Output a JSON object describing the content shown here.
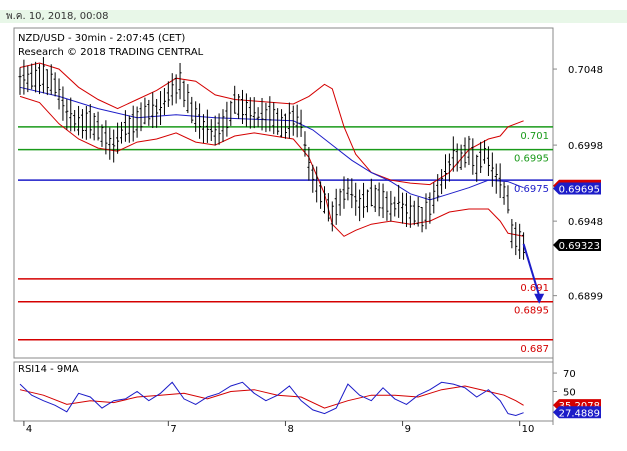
{
  "header": {
    "date_text": "พ.ค. 10, 2018, 00:08"
  },
  "chart_data": {
    "type": "line",
    "title": "NZD/USD - 30min - 2:07:45 (CET)",
    "subtitle": "Research © 2018 TRADING CENTRAL",
    "price_ylim": [
      0.6858,
      0.7075
    ],
    "price_ticks": [
      {
        "label": "0.7048",
        "value": 0.7048
      },
      {
        "label": "0.6998",
        "value": 0.6998
      },
      {
        "label": "0.6948",
        "value": 0.6948
      },
      {
        "label": "0.6899",
        "value": 0.6899
      }
    ],
    "x_ticks": [
      {
        "label": "4",
        "index": 2
      },
      {
        "label": "7",
        "index": 76
      },
      {
        "label": "8",
        "index": 136
      },
      {
        "label": "9",
        "index": 196
      },
      {
        "label": "10",
        "index": 256
      }
    ],
    "n_bars": 270,
    "levels": [
      {
        "label": "0.701",
        "value": 0.701,
        "color": "#1a9a1a",
        "text_color": "#1a9a1a"
      },
      {
        "label": "0.6995",
        "value": 0.6995,
        "color": "#1a9a1a",
        "text_color": "#1a9a1a"
      },
      {
        "label": "0.6975",
        "value": 0.6975,
        "color": "#1c1cc8",
        "text_color": "#1c1cc8"
      },
      {
        "label": "0.691",
        "value": 0.691,
        "color": "#d40000",
        "text_color": "#d40000"
      },
      {
        "label": "0.6895",
        "value": 0.6895,
        "color": "#d40000",
        "text_color": "#d40000"
      },
      {
        "label": "0.687",
        "value": 0.687,
        "color": "#d40000",
        "text_color": "#d40000"
      }
    ],
    "price_series": {
      "name": "NZD/USD",
      "color": "#000000",
      "points": [
        [
          0,
          0.7043
        ],
        [
          6,
          0.7041
        ],
        [
          12,
          0.7044
        ],
        [
          18,
          0.7037
        ],
        [
          24,
          0.702
        ],
        [
          30,
          0.7012
        ],
        [
          36,
          0.7014
        ],
        [
          42,
          0.7005
        ],
        [
          48,
          0.6998
        ],
        [
          54,
          0.7009
        ],
        [
          60,
          0.7014
        ],
        [
          66,
          0.702
        ],
        [
          72,
          0.7022
        ],
        [
          78,
          0.7034
        ],
        [
          82,
          0.704
        ],
        [
          88,
          0.702
        ],
        [
          94,
          0.7011
        ],
        [
          100,
          0.7006
        ],
        [
          106,
          0.7015
        ],
        [
          110,
          0.7025
        ],
        [
          116,
          0.7022
        ],
        [
          122,
          0.7016
        ],
        [
          128,
          0.7019
        ],
        [
          134,
          0.701
        ],
        [
          140,
          0.7016
        ],
        [
          144,
          0.7011
        ],
        [
          148,
          0.6985
        ],
        [
          152,
          0.6972
        ],
        [
          156,
          0.696
        ],
        [
          160,
          0.6952
        ],
        [
          164,
          0.6963
        ],
        [
          168,
          0.6968
        ],
        [
          174,
          0.696
        ],
        [
          180,
          0.6964
        ],
        [
          186,
          0.6962
        ],
        [
          190,
          0.6956
        ],
        [
          194,
          0.696
        ],
        [
          200,
          0.6954
        ],
        [
          206,
          0.6951
        ],
        [
          210,
          0.6958
        ],
        [
          214,
          0.6968
        ],
        [
          218,
          0.698
        ],
        [
          222,
          0.6992
        ],
        [
          226,
          0.6988
        ],
        [
          230,
          0.6996
        ],
        [
          234,
          0.6985
        ],
        [
          238,
          0.6992
        ],
        [
          242,
          0.6982
        ],
        [
          246,
          0.6974
        ],
        [
          250,
          0.696
        ],
        [
          252,
          0.694
        ],
        [
          255,
          0.6936
        ],
        [
          258,
          0.6933
        ]
      ]
    },
    "ma_series": {
      "color": "#1c1cc8",
      "points": [
        [
          0,
          0.7036
        ],
        [
          20,
          0.703
        ],
        [
          40,
          0.7022
        ],
        [
          60,
          0.7016
        ],
        [
          80,
          0.7018
        ],
        [
          100,
          0.7016
        ],
        [
          120,
          0.7015
        ],
        [
          140,
          0.7014
        ],
        [
          150,
          0.7008
        ],
        [
          160,
          0.6998
        ],
        [
          170,
          0.6988
        ],
        [
          180,
          0.698
        ],
        [
          190,
          0.6974
        ],
        [
          200,
          0.6966
        ],
        [
          210,
          0.6962
        ],
        [
          220,
          0.6966
        ],
        [
          230,
          0.697
        ],
        [
          240,
          0.6975
        ],
        [
          250,
          0.6974
        ],
        [
          258,
          0.697
        ]
      ]
    },
    "bollinger_upper": {
      "color": "#d40000",
      "points": [
        [
          0,
          0.7049
        ],
        [
          10,
          0.7052
        ],
        [
          20,
          0.7048
        ],
        [
          30,
          0.7036
        ],
        [
          40,
          0.7028
        ],
        [
          50,
          0.7022
        ],
        [
          60,
          0.7028
        ],
        [
          70,
          0.7034
        ],
        [
          80,
          0.7042
        ],
        [
          90,
          0.704
        ],
        [
          100,
          0.7031
        ],
        [
          110,
          0.7028
        ],
        [
          120,
          0.7027
        ],
        [
          130,
          0.7026
        ],
        [
          140,
          0.7025
        ],
        [
          148,
          0.703
        ],
        [
          156,
          0.7038
        ],
        [
          160,
          0.7035
        ],
        [
          166,
          0.701
        ],
        [
          172,
          0.6992
        ],
        [
          180,
          0.698
        ],
        [
          190,
          0.6975
        ],
        [
          200,
          0.6973
        ],
        [
          210,
          0.6972
        ],
        [
          220,
          0.698
        ],
        [
          230,
          0.6995
        ],
        [
          240,
          0.7002
        ],
        [
          246,
          0.7004
        ],
        [
          250,
          0.701
        ],
        [
          258,
          0.7014
        ]
      ]
    },
    "bollinger_lower": {
      "color": "#d40000",
      "points": [
        [
          0,
          0.703
        ],
        [
          10,
          0.7026
        ],
        [
          20,
          0.7012
        ],
        [
          30,
          0.7002
        ],
        [
          40,
          0.6996
        ],
        [
          50,
          0.6994
        ],
        [
          60,
          0.7
        ],
        [
          70,
          0.7002
        ],
        [
          80,
          0.7006
        ],
        [
          90,
          0.7
        ],
        [
          100,
          0.6998
        ],
        [
          110,
          0.7004
        ],
        [
          120,
          0.7006
        ],
        [
          130,
          0.7004
        ],
        [
          140,
          0.7002
        ],
        [
          148,
          0.699
        ],
        [
          156,
          0.6966
        ],
        [
          160,
          0.6946
        ],
        [
          166,
          0.6938
        ],
        [
          172,
          0.6942
        ],
        [
          180,
          0.6946
        ],
        [
          190,
          0.6948
        ],
        [
          200,
          0.6946
        ],
        [
          210,
          0.6948
        ],
        [
          220,
          0.6954
        ],
        [
          230,
          0.6956
        ],
        [
          240,
          0.6956
        ],
        [
          246,
          0.6948
        ],
        [
          250,
          0.694
        ],
        [
          258,
          0.6938
        ]
      ]
    },
    "forecast_arrow": {
      "color": "#1c1cc8",
      "from": [
        258,
        0.6933
      ],
      "to": [
        266,
        0.6895
      ]
    },
    "price_badges": [
      {
        "label": "0.69713",
        "value": 0.69713,
        "fill": "#d40000",
        "text_color": "#ffffff"
      },
      {
        "label": "0.69695",
        "value": 0.69695,
        "fill": "#1c1cc8",
        "text_color": "#ffffff"
      },
      {
        "label": "0.69323",
        "value": 0.69323,
        "fill": "#000000",
        "text_color": "#ffffff"
      }
    ],
    "rsi": {
      "title": "RSI14 - 9MA",
      "ylim": [
        18,
        82
      ],
      "ticks": [
        {
          "label": "70",
          "value": 70
        },
        {
          "label": "50",
          "value": 50
        }
      ],
      "rsi_series": {
        "color": "#1c1cc8",
        "values": [
          [
            0,
            58
          ],
          [
            6,
            46
          ],
          [
            12,
            40
          ],
          [
            18,
            35
          ],
          [
            24,
            28
          ],
          [
            30,
            48
          ],
          [
            36,
            44
          ],
          [
            42,
            32
          ],
          [
            48,
            40
          ],
          [
            54,
            42
          ],
          [
            60,
            50
          ],
          [
            66,
            40
          ],
          [
            72,
            48
          ],
          [
            78,
            60
          ],
          [
            84,
            42
          ],
          [
            90,
            36
          ],
          [
            96,
            44
          ],
          [
            102,
            48
          ],
          [
            108,
            56
          ],
          [
            114,
            60
          ],
          [
            120,
            48
          ],
          [
            126,
            40
          ],
          [
            132,
            46
          ],
          [
            138,
            56
          ],
          [
            144,
            40
          ],
          [
            150,
            30
          ],
          [
            156,
            26
          ],
          [
            162,
            32
          ],
          [
            168,
            58
          ],
          [
            174,
            46
          ],
          [
            180,
            40
          ],
          [
            186,
            54
          ],
          [
            192,
            42
          ],
          [
            198,
            36
          ],
          [
            204,
            46
          ],
          [
            210,
            52
          ],
          [
            216,
            60
          ],
          [
            222,
            58
          ],
          [
            228,
            54
          ],
          [
            234,
            44
          ],
          [
            240,
            52
          ],
          [
            246,
            40
          ],
          [
            250,
            26
          ],
          [
            254,
            24
          ],
          [
            258,
            27
          ]
        ]
      },
      "ma_series": {
        "color": "#d40000",
        "values": [
          [
            0,
            52
          ],
          [
            12,
            46
          ],
          [
            24,
            36
          ],
          [
            36,
            40
          ],
          [
            48,
            38
          ],
          [
            60,
            44
          ],
          [
            72,
            46
          ],
          [
            84,
            48
          ],
          [
            96,
            42
          ],
          [
            108,
            50
          ],
          [
            120,
            52
          ],
          [
            132,
            46
          ],
          [
            144,
            44
          ],
          [
            156,
            32
          ],
          [
            168,
            40
          ],
          [
            180,
            46
          ],
          [
            192,
            46
          ],
          [
            204,
            44
          ],
          [
            216,
            52
          ],
          [
            228,
            56
          ],
          [
            240,
            50
          ],
          [
            248,
            46
          ],
          [
            254,
            40
          ],
          [
            258,
            35
          ]
        ]
      },
      "badges": [
        {
          "label": "35.2078",
          "value": 35.2078,
          "fill": "#d40000",
          "text_color": "#ffffff"
        },
        {
          "label": "27.4889",
          "value": 27.4889,
          "fill": "#1c1cc8",
          "text_color": "#ffffff"
        }
      ]
    }
  }
}
